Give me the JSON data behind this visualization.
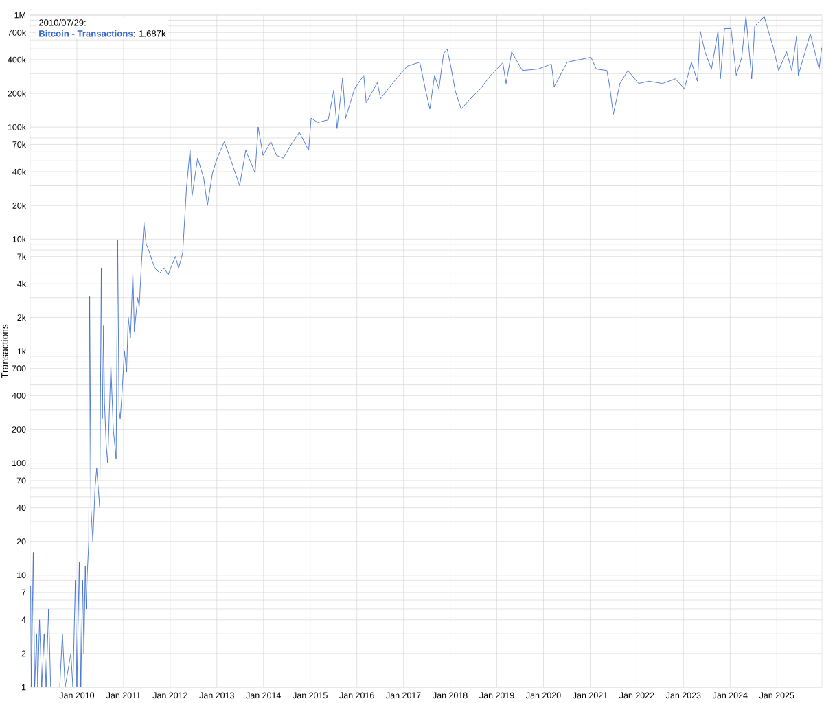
{
  "chart_data": {
    "type": "line",
    "ylabel": "Transactions",
    "log": "y",
    "grid": true,
    "legend": "top left",
    "xlim": [
      "2009-01-01",
      "2025-12-20"
    ],
    "xticks": [
      {
        "value": "2010-01-01",
        "label": "Jan 2010"
      },
      {
        "value": "2011-01-01",
        "label": "Jan 2011"
      },
      {
        "value": "2012-01-01",
        "label": "Jan 2012"
      },
      {
        "value": "2013-01-01",
        "label": "Jan 2013"
      },
      {
        "value": "2014-01-01",
        "label": "Jan 2014"
      },
      {
        "value": "2015-01-01",
        "label": "Jan 2015"
      },
      {
        "value": "2016-01-01",
        "label": "Jan 2016"
      },
      {
        "value": "2017-01-01",
        "label": "Jan 2017"
      },
      {
        "value": "2018-01-01",
        "label": "Jan 2018"
      },
      {
        "value": "2019-01-01",
        "label": "Jan 2019"
      },
      {
        "value": "2020-01-01",
        "label": "Jan 2020"
      },
      {
        "value": "2021-01-01",
        "label": "Jan 2021"
      },
      {
        "value": "2022-01-01",
        "label": "Jan 2022"
      },
      {
        "value": "2023-01-01",
        "label": "Jan 2023"
      },
      {
        "value": "2024-01-01",
        "label": "Jan 2024"
      },
      {
        "value": "2025-01-01",
        "label": "Jan 2025"
      }
    ],
    "ylim": [
      1,
      1000000
    ],
    "yticks": [
      1,
      2,
      {
        "value": 3,
        "label": null
      },
      4,
      {
        "value": 5,
        "label": null
      },
      {
        "value": 6,
        "label": null
      },
      7,
      {
        "value": 8,
        "label": null
      },
      {
        "value": 9,
        "label": null
      },
      10,
      20,
      {
        "value": 30,
        "label": null
      },
      40,
      {
        "value": 50,
        "label": null
      },
      {
        "value": 60,
        "label": null
      },
      70,
      {
        "value": 80,
        "label": null
      },
      {
        "value": 90,
        "label": null
      },
      100,
      200,
      {
        "value": 300,
        "label": null
      },
      400,
      {
        "value": 500,
        "label": null
      },
      {
        "value": 600,
        "label": null
      },
      700,
      {
        "value": 800,
        "label": null
      },
      {
        "value": 900,
        "label": null
      },
      {
        "value": 1000,
        "label": "1k"
      },
      {
        "value": 2000,
        "label": "2k"
      },
      {
        "value": 3000,
        "label": null
      },
      {
        "value": 4000,
        "label": "4k"
      },
      {
        "value": 5000,
        "label": null
      },
      {
        "value": 6000,
        "label": null
      },
      {
        "value": 7000,
        "label": "7k"
      },
      {
        "value": 8000,
        "label": null
      },
      {
        "value": 9000,
        "label": null
      },
      {
        "value": 10000,
        "label": "10k"
      },
      {
        "value": 20000,
        "label": "20k"
      },
      {
        "value": 30000,
        "label": null
      },
      {
        "value": 40000,
        "label": "40k"
      },
      {
        "value": 50000,
        "label": null
      },
      {
        "value": 60000,
        "label": null
      },
      {
        "value": 70000,
        "label": "70k"
      },
      {
        "value": 80000,
        "label": null
      },
      {
        "value": 90000,
        "label": null
      },
      {
        "value": 100000,
        "label": "100k"
      },
      {
        "value": 200000,
        "label": "200k"
      },
      {
        "value": 300000,
        "label": null
      },
      {
        "value": 400000,
        "label": "400k"
      },
      {
        "value": 500000,
        "label": null
      },
      {
        "value": 600000,
        "label": null
      },
      {
        "value": 700000,
        "label": "700k"
      },
      {
        "value": 800000,
        "label": null
      },
      {
        "value": 900000,
        "label": null
      },
      {
        "value": 1000000,
        "label": "1M"
      }
    ],
    "annotations": [
      "2010/07/29:",
      ": 1.687k"
    ],
    "x": [
      "2009-01-04",
      "2009-01-10",
      "2009-01-25",
      "2009-02-05",
      "2009-02-20",
      "2009-03-01",
      "2009-03-15",
      "2009-04-01",
      "2009-04-20",
      "2009-05-05",
      "2009-05-25",
      "2009-06-10",
      "2009-08-20",
      "2009-09-10",
      "2009-10-01",
      "2009-11-15",
      "2009-12-01",
      "2009-12-20",
      "2010-01-01",
      "2010-01-20",
      "2010-02-01",
      "2010-02-15",
      "2010-02-25",
      "2010-03-08",
      "2010-03-15",
      "2010-03-23",
      "2010-04-04",
      "2010-04-11",
      "2010-04-21",
      "2010-05-06",
      "2010-05-23",
      "2010-06-05",
      "2010-06-29",
      "2010-07-11",
      "2010-07-19",
      "2010-07-29",
      "2010-08-05",
      "2010-08-18",
      "2010-08-30",
      "2010-09-24",
      "2010-10-13",
      "2010-11-04",
      "2010-11-16",
      "2010-11-27",
      "2010-12-06",
      "2010-12-19",
      "2011-01-08",
      "2011-01-25",
      "2011-02-07",
      "2011-02-24",
      "2011-03-15",
      "2011-03-27",
      "2011-04-21",
      "2011-05-04",
      "2011-05-21",
      "2011-06-10",
      "2011-06-27",
      "2011-07-17",
      "2011-08-11",
      "2011-09-04",
      "2011-10-11",
      "2011-11-17",
      "2011-12-16",
      "2012-01-17",
      "2012-02-11",
      "2012-03-07",
      "2012-04-08",
      "2012-05-08",
      "2012-06-05",
      "2012-06-20",
      "2012-08-03",
      "2012-09-20",
      "2012-10-19",
      "2012-11-28",
      "2013-01-04",
      "2013-02-28",
      "2013-04-20",
      "2013-06-28",
      "2013-08-15",
      "2013-10-27",
      "2013-11-20",
      "2013-12-28",
      "2014-02-28",
      "2014-04-12",
      "2014-06-05",
      "2014-07-30",
      "2014-10-08",
      "2014-12-20",
      "2015-01-08",
      "2015-03-03",
      "2015-05-22",
      "2015-07-05",
      "2015-07-30",
      "2015-09-12",
      "2015-10-05",
      "2015-12-14",
      "2016-02-24",
      "2016-03-14",
      "2016-06-10",
      "2016-07-05",
      "2016-10-12",
      "2017-01-30",
      "2017-05-08",
      "2017-06-20",
      "2017-07-26",
      "2017-09-01",
      "2017-10-05",
      "2017-11-10",
      "2017-12-08",
      "2018-01-08",
      "2018-02-10",
      "2018-03-28",
      "2018-06-02",
      "2018-08-25",
      "2018-11-14",
      "2019-02-17",
      "2019-03-14",
      "2019-04-27",
      "2019-07-20",
      "2019-11-20",
      "2020-03-03",
      "2020-03-25",
      "2020-07-05",
      "2021-01-08",
      "2021-02-18",
      "2021-05-12",
      "2021-06-03",
      "2021-07-01",
      "2021-08-22",
      "2021-10-23",
      "2022-01-15",
      "2022-04-05",
      "2022-07-20",
      "2022-10-30",
      "2023-01-08",
      "2023-03-04",
      "2023-04-20",
      "2023-05-12",
      "2023-06-18",
      "2023-08-08",
      "2023-09-28",
      "2023-10-16",
      "2023-11-18",
      "2024-01-08",
      "2024-02-18",
      "2024-04-01",
      "2024-05-04",
      "2024-06-18",
      "2024-07-12",
      "2024-09-24",
      "2024-12-05",
      "2025-01-15",
      "2025-03-18",
      "2025-04-28",
      "2025-06-05",
      "2025-06-18",
      "2025-09-20",
      "2025-11-28",
      "2025-12-18"
    ],
    "series": [
      {
        "name": "Bitcoin - Transactions",
        "color": "#3366cc",
        "values": [
          8,
          1,
          16,
          1,
          3,
          1,
          4,
          1,
          3,
          1,
          5,
          1,
          1,
          3,
          1,
          2,
          1,
          9,
          1,
          13,
          1,
          9,
          2,
          12,
          5,
          10,
          20,
          3100,
          40,
          20,
          60,
          90,
          40,
          5500,
          250,
          1687,
          350,
          150,
          100,
          750,
          200,
          110,
          9800,
          300,
          250,
          400,
          1000,
          650,
          2000,
          1300,
          5000,
          1500,
          3000,
          2500,
          6000,
          14000,
          9000,
          8000,
          6500,
          5500,
          5000,
          5500,
          4800,
          6000,
          7000,
          5500,
          7500,
          29000,
          63000,
          24000,
          53000,
          35000,
          20000,
          39000,
          53000,
          74000,
          51000,
          30000,
          62000,
          39000,
          100000,
          56000,
          74000,
          56000,
          53000,
          68000,
          90000,
          62000,
          120000,
          110000,
          116000,
          214000,
          97000,
          275000,
          120000,
          220000,
          290000,
          165000,
          250000,
          180000,
          250000,
          350000,
          380000,
          220000,
          145000,
          290000,
          220000,
          450000,
          500000,
          340000,
          210000,
          145000,
          176000,
          220000,
          290000,
          376000,
          245000,
          470000,
          320000,
          330000,
          365000,
          230000,
          380000,
          420000,
          330000,
          320000,
          230000,
          130000,
          245000,
          320000,
          245000,
          257000,
          245000,
          270000,
          220000,
          380000,
          257000,
          720000,
          470000,
          330000,
          720000,
          270000,
          760000,
          760000,
          290000,
          420000,
          980000,
          270000,
          800000,
          970000,
          510000,
          320000,
          470000,
          320000,
          650000,
          290000,
          680000,
          330000,
          510000
        ]
      }
    ]
  }
}
